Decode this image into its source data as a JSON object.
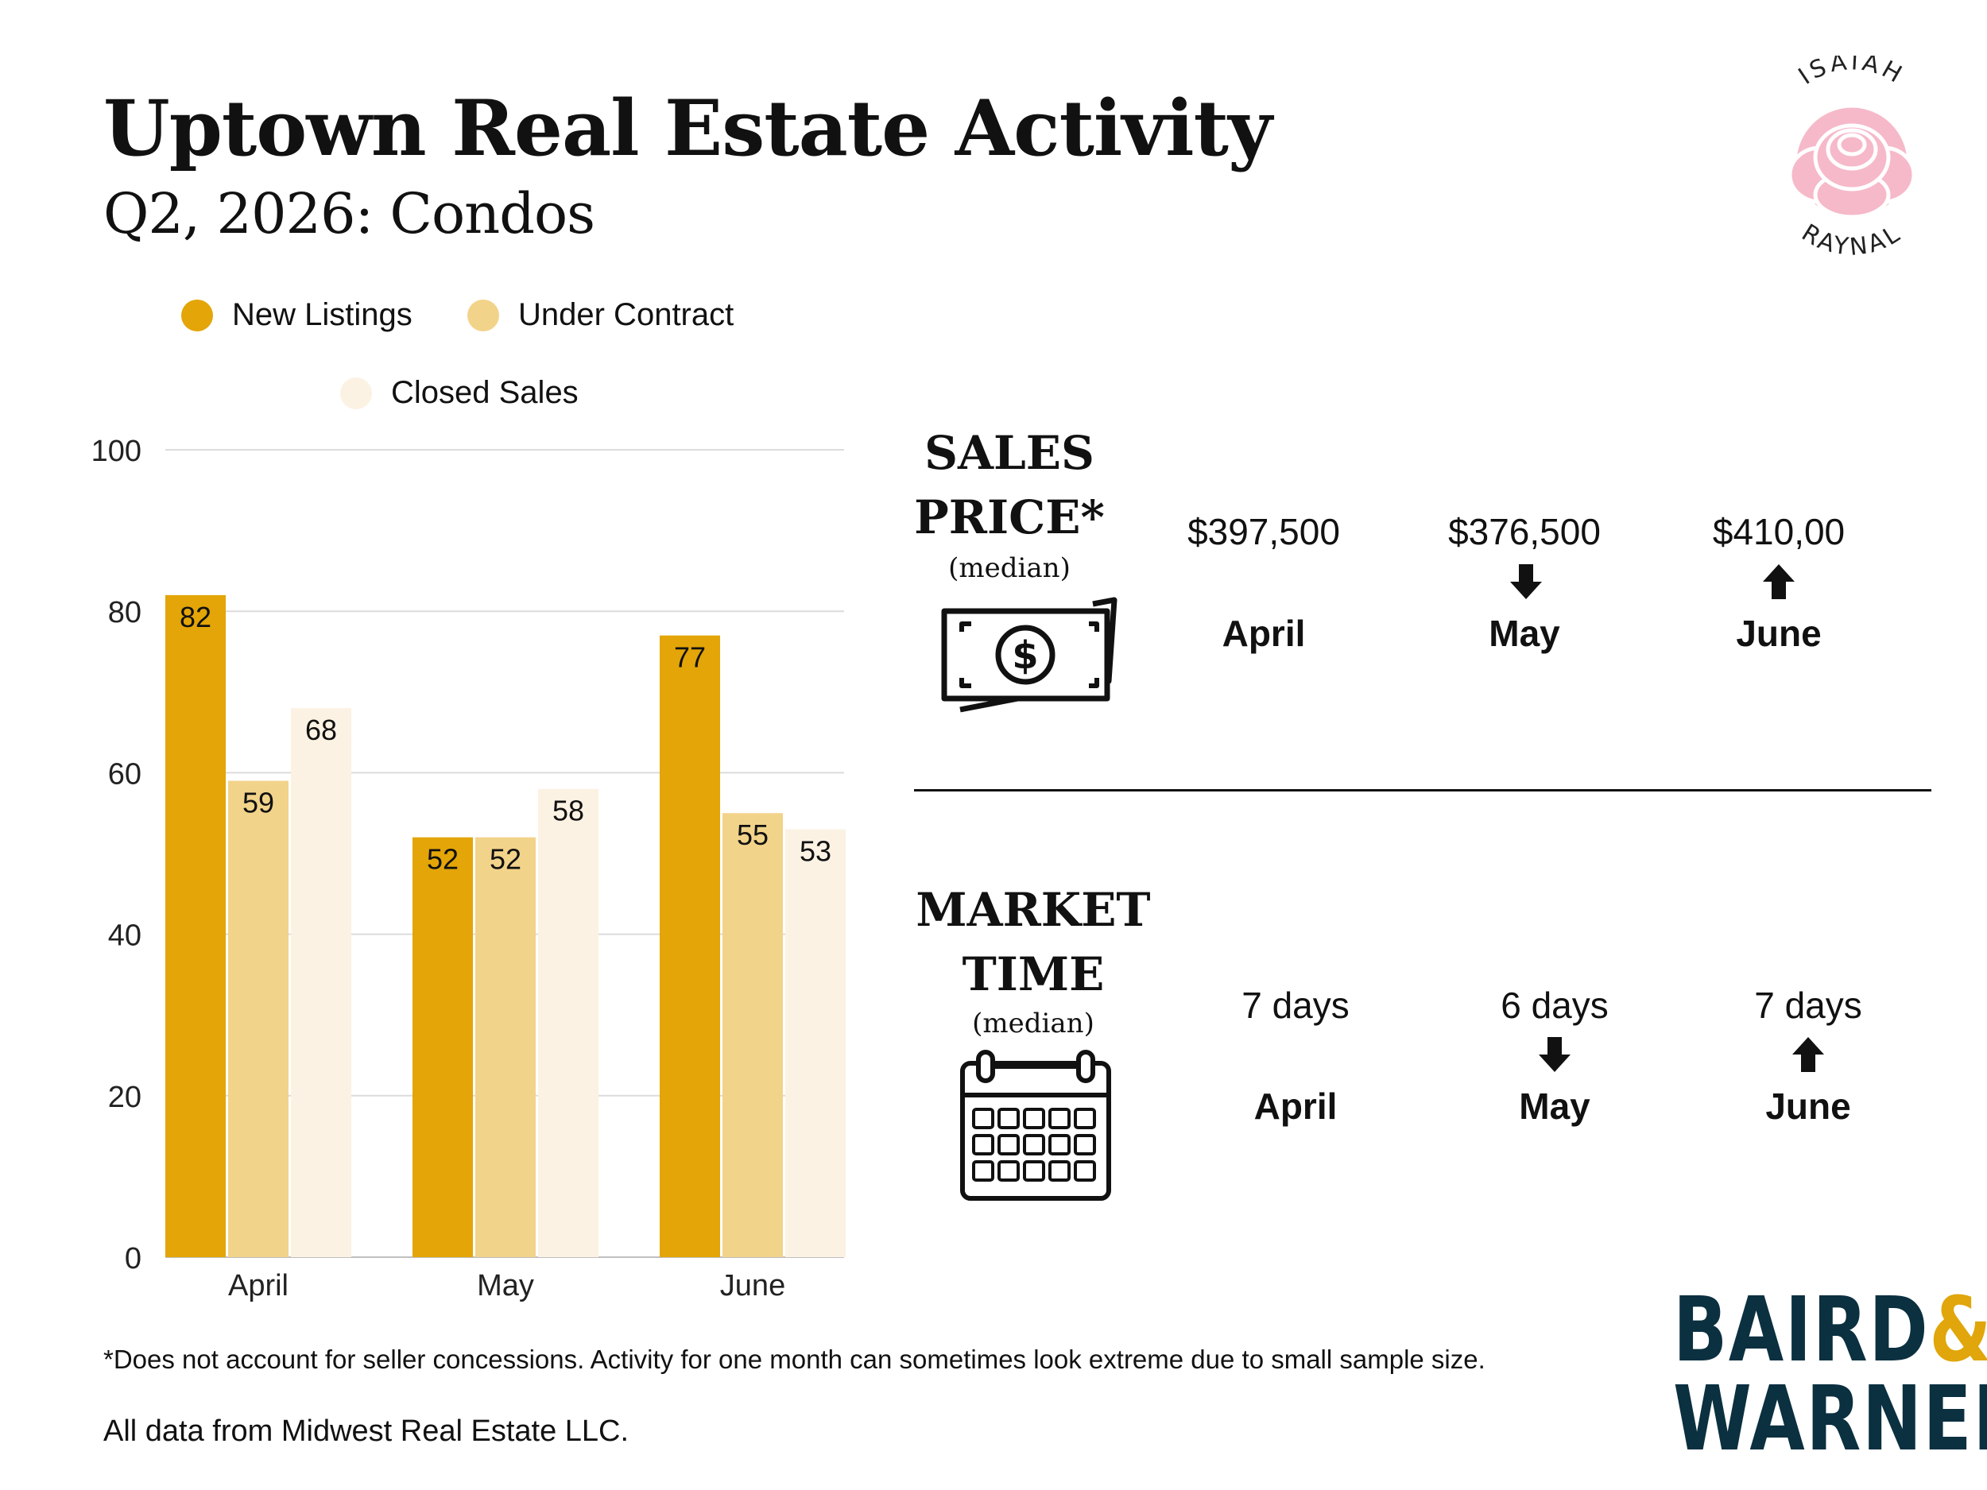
{
  "header": {
    "title": "Uptown Real Estate Activity",
    "subtitle": "Q2, 2026: Condos"
  },
  "logo": {
    "name_top": "ISAIAH",
    "name_bottom": "RAYNAL",
    "icon": "rose-icon",
    "rose_color": "#f6b9c9"
  },
  "legend": [
    {
      "label": "New Listings",
      "color": "#e3a507"
    },
    {
      "label": "Under Contract",
      "color": "#f2d38a"
    },
    {
      "label": "Closed Sales",
      "color": "#fbf2e3"
    }
  ],
  "chart_data": {
    "type": "bar",
    "categories": [
      "April",
      "May",
      "June"
    ],
    "series": [
      {
        "name": "New Listings",
        "values": [
          82,
          52,
          77
        ],
        "color": "#e3a507"
      },
      {
        "name": "Under Contract",
        "values": [
          59,
          52,
          55
        ],
        "color": "#f2d38a"
      },
      {
        "name": "Closed Sales",
        "values": [
          68,
          58,
          53
        ],
        "color": "#fbf2e3"
      }
    ],
    "ylim": [
      0,
      100
    ],
    "yticks": [
      0,
      20,
      40,
      60,
      80,
      100
    ],
    "grid": true,
    "legend_position": "top"
  },
  "sales_price": {
    "heading_line1": "SALES",
    "heading_line2": "PRICE*",
    "qualifier": "(median)",
    "icon": "money-bill-icon",
    "months": [
      {
        "value": "$397,500",
        "month": "April",
        "trend": "none"
      },
      {
        "value": "$376,500",
        "month": "May",
        "trend": "down"
      },
      {
        "value": "$410,00",
        "month": "June",
        "trend": "up"
      }
    ]
  },
  "market_time": {
    "heading_line1": "MARKET",
    "heading_line2": "TIME",
    "qualifier": "(median)",
    "icon": "calendar-icon",
    "months": [
      {
        "value": "7 days",
        "month": "April",
        "trend": "none"
      },
      {
        "value": "6 days",
        "month": "May",
        "trend": "down"
      },
      {
        "value": "7 days",
        "month": "June",
        "trend": "up"
      }
    ]
  },
  "footer": {
    "footnote": "*Does not account for seller concessions. Activity for one month can sometimes look extreme due to small sample size.",
    "source": "All data from Midwest Real Estate LLC."
  },
  "brand": {
    "line1": "BAIRD",
    "amp": "&",
    "line2": "WARNER",
    "color": "#0b3040",
    "accent": "#e0a60b"
  }
}
